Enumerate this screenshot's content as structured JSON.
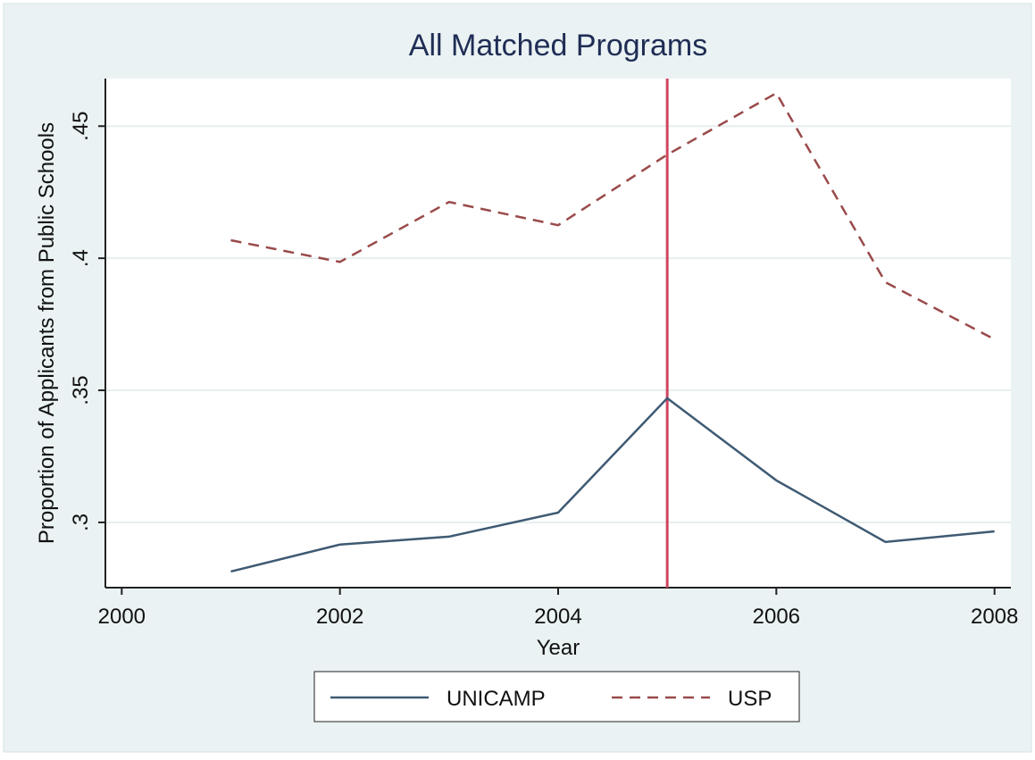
{
  "chart_data": {
    "type": "line",
    "title": "All Matched Programs",
    "x_label": "Year",
    "y_label": "Proportion of Applicants from Public Schools",
    "x": [
      2001,
      2002,
      2003,
      2004,
      2005,
      2006,
      2007,
      2008
    ],
    "series": [
      {
        "name": "UNICAMP",
        "color": "#3e5a73",
        "dash": "solid",
        "values": [
          0.2814,
          0.2916,
          0.2946,
          0.3037,
          0.347,
          0.3159,
          0.2926,
          0.2966
        ]
      },
      {
        "name": "USP",
        "color": "#9a4a4a",
        "dash": "dashed",
        "values": [
          0.4068,
          0.3986,
          0.4213,
          0.4125,
          0.4392,
          0.4625,
          0.3909,
          0.3693
        ]
      }
    ],
    "xline": 2005,
    "xline_color": "#d0455f",
    "xlim": [
      1999.85,
      2008.15
    ],
    "xticks": [
      2000,
      2002,
      2004,
      2006,
      2008
    ],
    "ylim": [
      0.2753,
      0.468
    ],
    "yticks": [
      {
        "value": 0.3,
        "label": ".3"
      },
      {
        "value": 0.35,
        "label": ".35"
      },
      {
        "value": 0.4,
        "label": ".4"
      },
      {
        "value": 0.45,
        "label": ".45"
      }
    ],
    "grid": true,
    "legend": "bottom"
  }
}
